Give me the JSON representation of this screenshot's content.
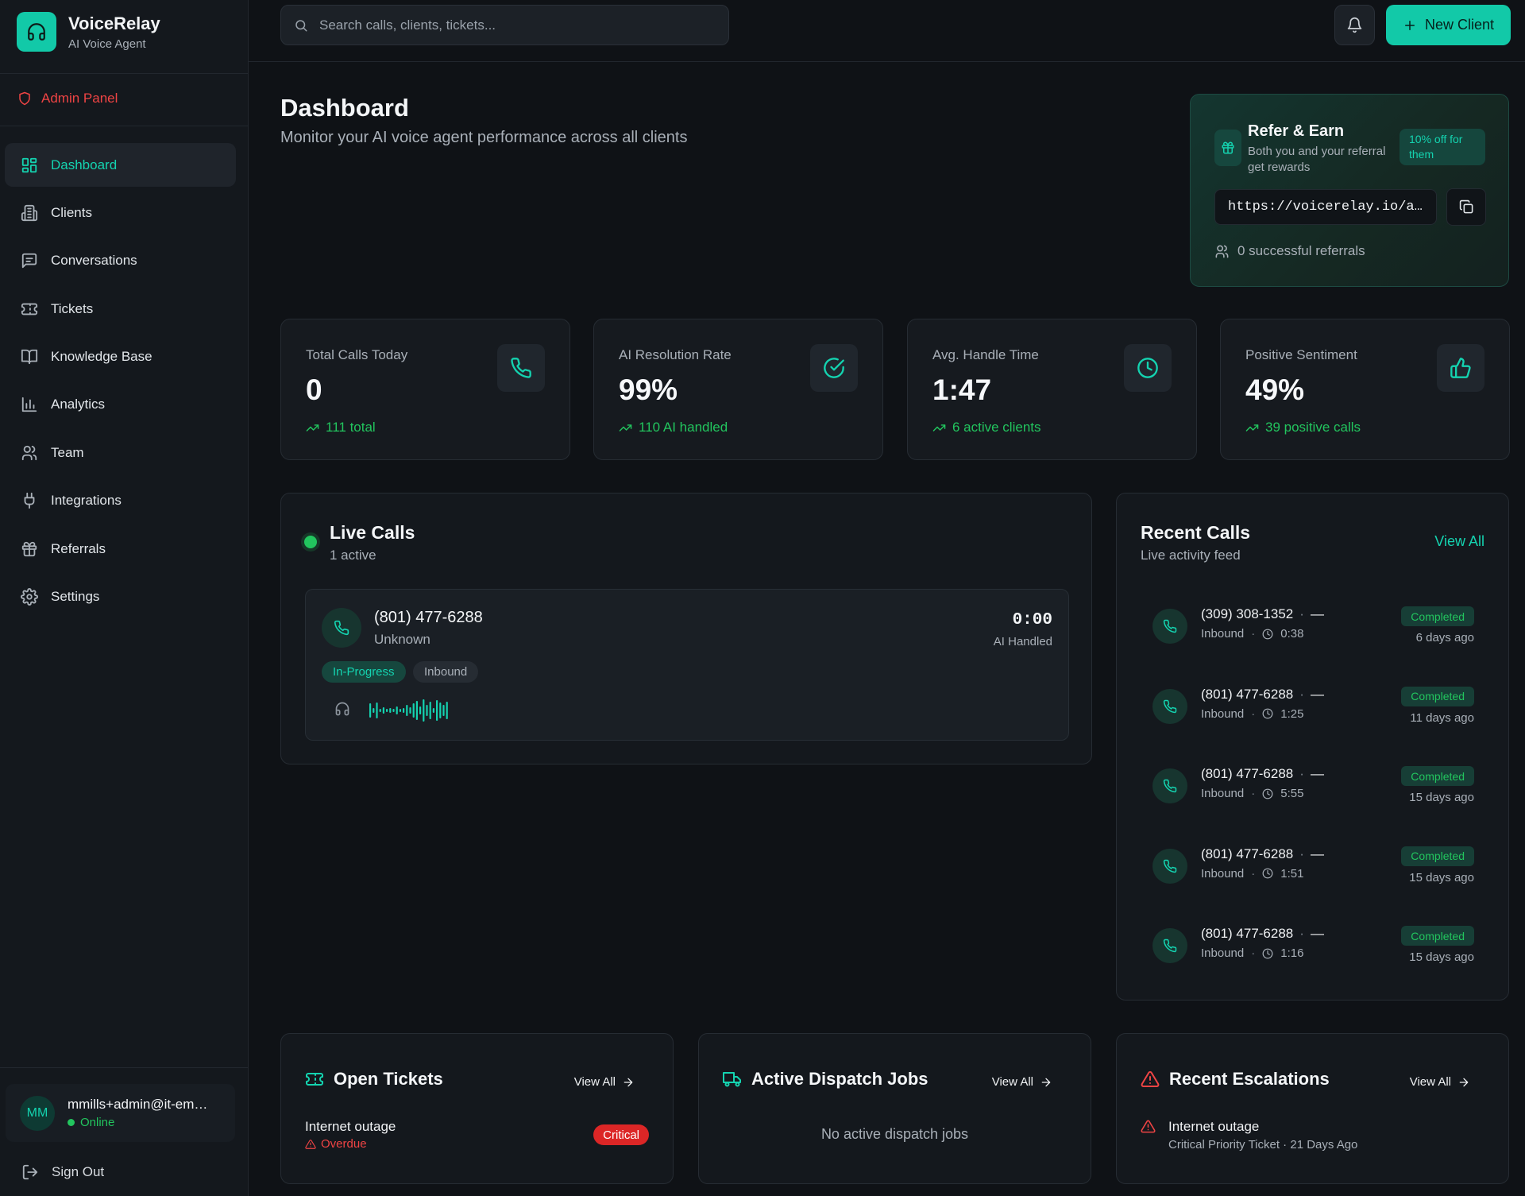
{
  "brand": {
    "name": "VoiceRelay",
    "subtitle": "AI Voice Agent",
    "logo_icon": "headphones-icon"
  },
  "admin_panel": {
    "label": "Admin Panel",
    "icon": "shield-icon",
    "color": "#ef4444"
  },
  "nav": {
    "items": [
      {
        "label": "Dashboard",
        "icon": "dashboard-icon",
        "active": true
      },
      {
        "label": "Clients",
        "icon": "building-icon"
      },
      {
        "label": "Conversations",
        "icon": "message-icon"
      },
      {
        "label": "Tickets",
        "icon": "ticket-icon"
      },
      {
        "label": "Knowledge Base",
        "icon": "book-icon"
      },
      {
        "label": "Analytics",
        "icon": "bar-chart-icon"
      },
      {
        "label": "Team",
        "icon": "users-icon"
      },
      {
        "label": "Integrations",
        "icon": "plug-icon"
      },
      {
        "label": "Referrals",
        "icon": "gift-icon"
      },
      {
        "label": "Settings",
        "icon": "gear-icon"
      }
    ]
  },
  "user": {
    "initials": "MM",
    "email": "mmills+admin@it-em…",
    "status": "Online"
  },
  "sign_out": {
    "label": "Sign Out"
  },
  "search": {
    "placeholder": "Search calls, clients, tickets..."
  },
  "topbar": {
    "new_client_label": "New Client",
    "accent": "#12c9a8"
  },
  "header": {
    "title": "Dashboard",
    "subtitle": "Monitor your AI voice agent performance across all clients"
  },
  "referral": {
    "title": "Refer & Earn",
    "description": "Both you and your referral get rewards",
    "badge": "10% off for them",
    "link": "https://voicerelay.io/au…",
    "count_text": "0 successful referrals"
  },
  "stats": [
    {
      "label": "Total Calls Today",
      "value": "0",
      "trend": "111 total",
      "icon": "phone-icon"
    },
    {
      "label": "AI Resolution Rate",
      "value": "99%",
      "trend": "110 AI handled",
      "icon": "check-circle-icon"
    },
    {
      "label": "Avg. Handle Time",
      "value": "1:47",
      "trend": "6 active clients",
      "icon": "clock-icon"
    },
    {
      "label": "Positive Sentiment",
      "value": "49%",
      "trend": "39 positive calls",
      "icon": "thumbs-up-icon"
    }
  ],
  "live_calls": {
    "title": "Live Calls",
    "subtitle": "1 active",
    "call": {
      "number": "(801) 477-6288",
      "caller": "Unknown",
      "duration": "0:00",
      "handler": "AI Handled",
      "status_tag": "In-Progress",
      "direction_tag": "Inbound"
    }
  },
  "recent_calls": {
    "title": "Recent Calls",
    "subtitle": "Live activity feed",
    "view_all": "View All",
    "items": [
      {
        "number": "(309) 308-1352",
        "dash": "—",
        "direction": "Inbound",
        "duration": "0:38",
        "status": "Completed",
        "ago": "6 days ago"
      },
      {
        "number": "(801) 477-6288",
        "dash": "—",
        "direction": "Inbound",
        "duration": "1:25",
        "status": "Completed",
        "ago": "11 days ago"
      },
      {
        "number": "(801) 477-6288",
        "dash": "—",
        "direction": "Inbound",
        "duration": "5:55",
        "status": "Completed",
        "ago": "15 days ago"
      },
      {
        "number": "(801) 477-6288",
        "dash": "—",
        "direction": "Inbound",
        "duration": "1:51",
        "status": "Completed",
        "ago": "15 days ago"
      },
      {
        "number": "(801) 477-6288",
        "dash": "—",
        "direction": "Inbound",
        "duration": "1:16",
        "status": "Completed",
        "ago": "15 days ago"
      }
    ]
  },
  "open_tickets": {
    "title": "Open Tickets",
    "view_all": "View All",
    "items": [
      {
        "name": "Internet outage",
        "state": "Overdue",
        "priority": "Critical"
      }
    ]
  },
  "dispatch": {
    "title": "Active Dispatch Jobs",
    "view_all": "View All",
    "empty": "No active dispatch jobs"
  },
  "escalations": {
    "title": "Recent Escalations",
    "view_all": "View All",
    "items": [
      {
        "name": "Internet outage",
        "meta": "Critical Priority Ticket · 21 Days Ago"
      }
    ]
  }
}
